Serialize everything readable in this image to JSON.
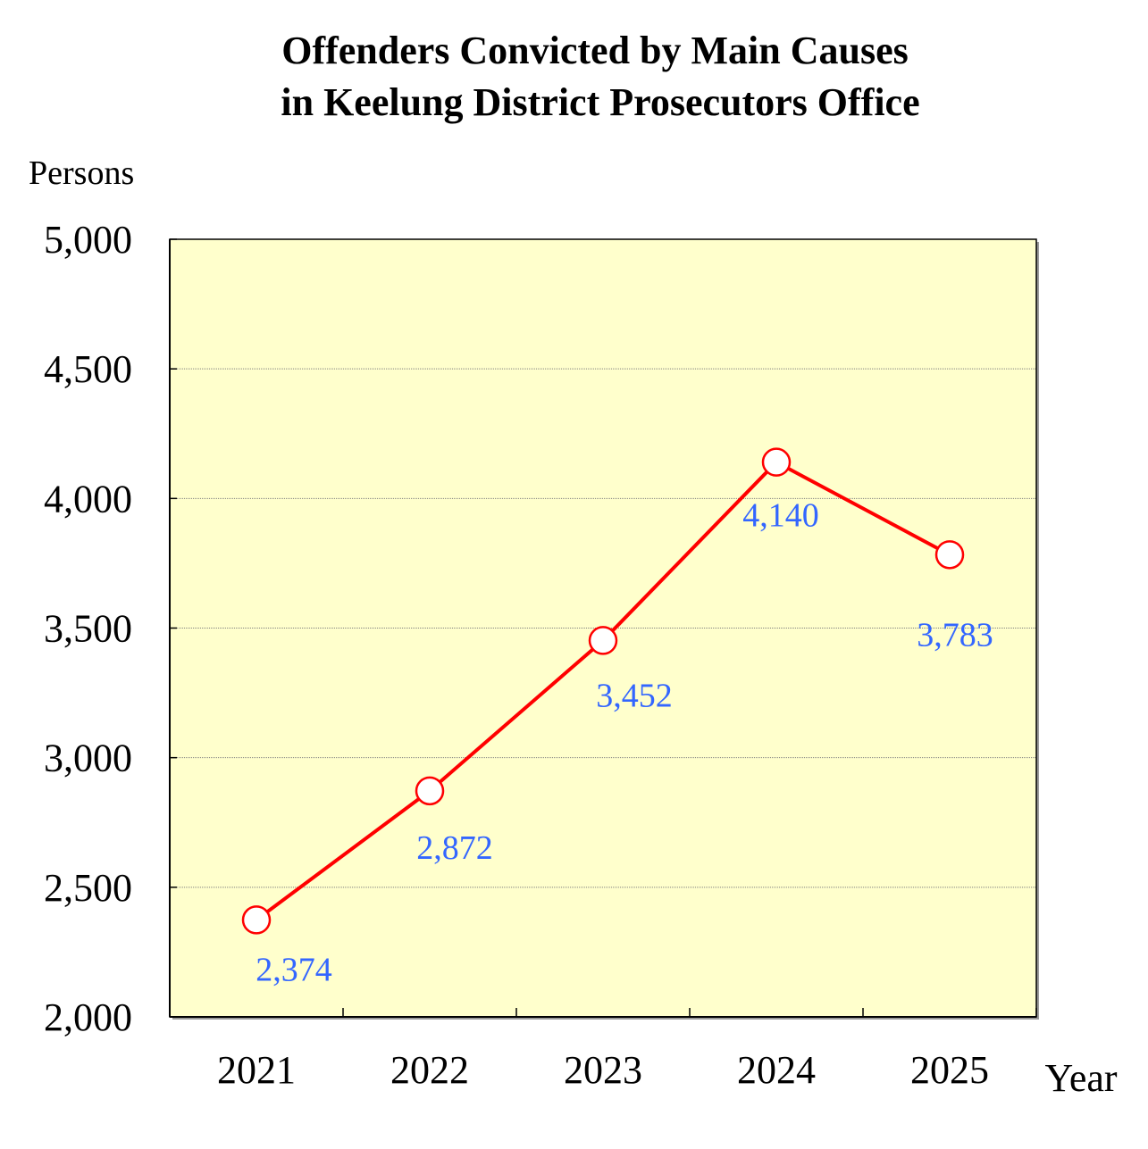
{
  "chart_data": {
    "type": "line",
    "title": "Offenders Convicted by Main Causes",
    "subtitle": "in Keelung District Prosecutors Office",
    "ylabel": "Persons",
    "xlabel": "Year",
    "categories": [
      "2021",
      "2022",
      "2023",
      "2024",
      "2025"
    ],
    "series": [
      {
        "name": "Offenders Convicted",
        "values": [
          2374,
          2872,
          3452,
          4140,
          3783
        ],
        "data_labels": [
          "2,374",
          "2,872",
          "3,452",
          "4,140",
          "3,783"
        ]
      }
    ],
    "ylim": [
      2000,
      5000
    ],
    "yticks": [
      2000,
      2500,
      3000,
      3500,
      4000,
      4500,
      5000
    ],
    "ytick_labels": [
      "2,000",
      "2,500",
      "3,000",
      "3,500",
      "4,000",
      "4,500",
      "5,000"
    ],
    "grid": true
  },
  "colors": {
    "plot_background": "#ffffcc",
    "line": "#ff0000",
    "marker_fill": "#ffffff",
    "data_label": "#3366ff",
    "grid": "#808080",
    "axis": "#000000"
  }
}
